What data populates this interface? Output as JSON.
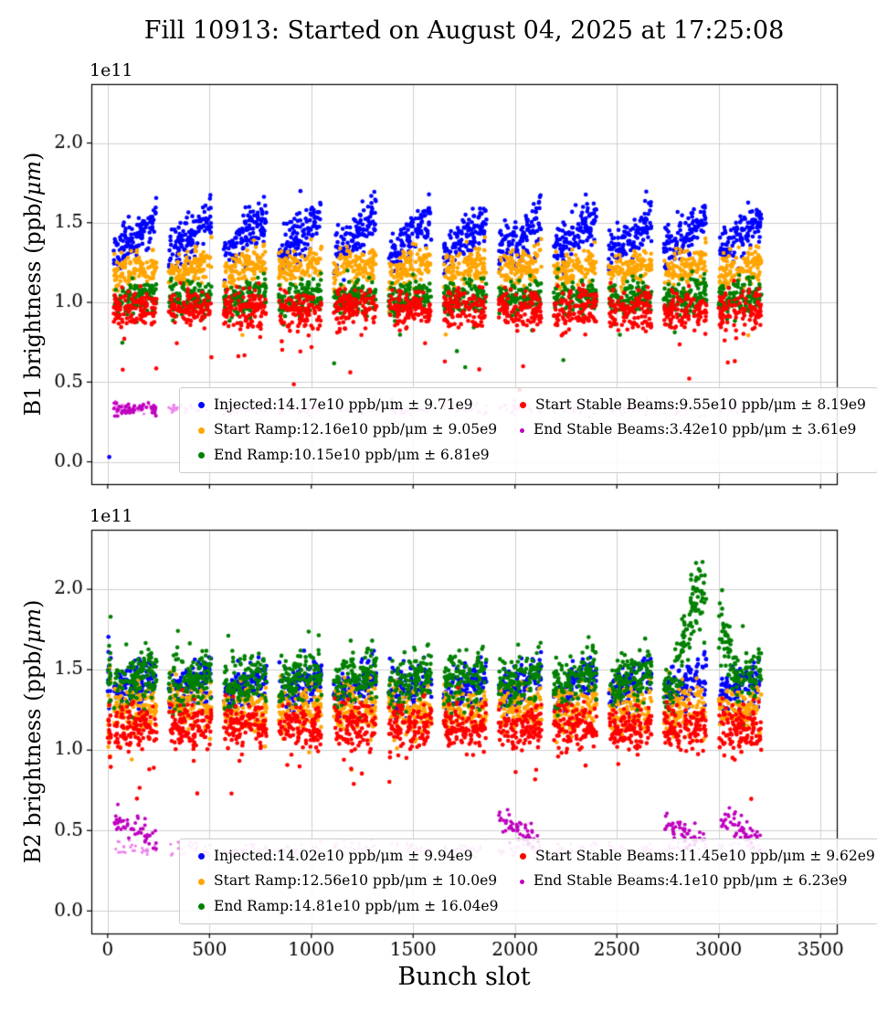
{
  "figure": {
    "title": "Fill 10913: Started on August 04, 2025 at 17:25:08",
    "xlabel": "Bunch slot",
    "background": "#ffffff"
  },
  "chart_data": [
    {
      "type": "scatter",
      "beam": "B1",
      "ylabel_text": "B1 brightness (ppb/μm)",
      "ylabel": {
        "pre": "B1 brightness (ppb/",
        "mu": "μm",
        "post": ")"
      },
      "xlabel": "Bunch slot",
      "offset_text": "1e11",
      "xlim": [
        -80,
        3580
      ],
      "ylim": [
        -0.14,
        2.37
      ],
      "x_ticks": [
        0,
        500,
        1000,
        1500,
        2000,
        2500,
        3000,
        3500
      ],
      "x_tick_labels": [
        "0",
        "500",
        "1000",
        "1500",
        "2000",
        "2500",
        "3000",
        "3500"
      ],
      "y_ticks": [
        0,
        0.5,
        1,
        1.5,
        2
      ],
      "y_tick_labels": [
        "0.0",
        "0.5",
        "1.0",
        "1.5",
        "2.0"
      ],
      "grid": true,
      "grid_color": "#d0d0d0",
      "legend_position": "lower center",
      "trains": {
        "start": 30,
        "step": 270,
        "len": 210,
        "count": 12
      },
      "seed": 20913,
      "stray": [
        {
          "x": 8,
          "y": 0.03,
          "color": "#0000ff",
          "size": 2.3
        }
      ],
      "series": [
        {
          "label": "Injected:14.17e10 ppb/μm ± 9.71e9",
          "name": "Injected",
          "mean_e10": 14.17,
          "std_e9": 9.71,
          "color": "#0000ff",
          "render": {
            "mean": 1.417,
            "sigma": 0.072,
            "trend": 0.22,
            "per_train": 118,
            "size": 2.3
          }
        },
        {
          "label": "Start Ramp:12.16e10 ppb/μm ± 9.05e9",
          "name": "Start Ramp",
          "mean_e10": 12.16,
          "std_e9": 9.05,
          "color": "#ffa500",
          "render": {
            "mean": 1.216,
            "sigma": 0.058,
            "trend": 0.08,
            "per_train": 112,
            "size": 2.3,
            "outlier_p": 0.006
          }
        },
        {
          "label": "End Ramp:10.15e10 ppb/μm ± 6.81e9",
          "name": "End Ramp",
          "mean_e10": 10.15,
          "std_e9": 6.81,
          "color": "#008000",
          "render": {
            "mean": 1.03,
            "sigma": 0.055,
            "trend": 0.05,
            "per_train": 112,
            "size": 2.3,
            "outlier_p": 0.012
          }
        },
        {
          "label": "Start Stable Beams:9.55e10 ppb/μm ± 8.19e9",
          "name": "Start Stable Beams",
          "mean_e10": 9.55,
          "std_e9": 8.19,
          "color": "#ff0000",
          "render": {
            "mean": 0.96,
            "sigma": 0.065,
            "trend": 0.0,
            "per_train": 114,
            "size": 2.3,
            "outlier_p": 0.02
          }
        },
        {
          "label": "End Stable Beams:3.42e10 ppb/μm ± 3.61e9",
          "name": "End Stable Beams",
          "mean_e10": 3.42,
          "std_e9": 3.61,
          "color": "#ee82ee",
          "legend_color": "#bf00bf",
          "render": {
            "mean": 0.335,
            "sigma": 0.02,
            "per_train": 26,
            "size": 1.6,
            "dark_trains": [
              0
            ],
            "dark_color": "#bf00bf",
            "dark_mean": 0.335,
            "dark_sigma": 0.02,
            "dark_n": 55,
            "dark_size": 2.0
          }
        }
      ]
    },
    {
      "type": "scatter",
      "beam": "B2",
      "ylabel_text": "B2 brightness (ppb/μm)",
      "ylabel": {
        "pre": "B2 brightness (ppb/",
        "mu": "μm",
        "post": ")"
      },
      "xlabel": "Bunch slot",
      "offset_text": "1e11",
      "xlim": [
        -80,
        3580
      ],
      "ylim": [
        -0.14,
        2.37
      ],
      "x_ticks": [
        0,
        500,
        1000,
        1500,
        2000,
        2500,
        3000,
        3500
      ],
      "x_tick_labels": [
        "0",
        "500",
        "1000",
        "1500",
        "2000",
        "2500",
        "3000",
        "3500"
      ],
      "y_ticks": [
        0,
        0.5,
        1,
        1.5,
        2
      ],
      "y_tick_labels": [
        "0.0",
        "0.5",
        "1.0",
        "1.5",
        "2.0"
      ],
      "grid": true,
      "grid_color": "#d0d0d0",
      "legend_position": "lower center",
      "trains": {
        "start": 30,
        "step": 270,
        "len": 210,
        "count": 12
      },
      "seed": 30913,
      "init": {
        "x_max": 16,
        "n": 14,
        "sigma_mult": 2.2
      },
      "series": [
        {
          "label": "Injected:14.02e10 ppb/μm ± 9.94e9",
          "name": "Injected",
          "mean_e10": 14.02,
          "std_e9": 9.94,
          "color": "#0000ff",
          "render": {
            "mean": 1.4,
            "sigma": 0.07,
            "trend": 0.12,
            "per_train": 112,
            "size": 2.3
          }
        },
        {
          "label": "Start Ramp:12.56e10 ppb/μm ± 10.0e9",
          "name": "Start Ramp",
          "mean_e10": 12.56,
          "std_e9": 10.0,
          "color": "#ffa500",
          "render": {
            "mean": 1.256,
            "sigma": 0.075,
            "trend": 0.0,
            "per_train": 110,
            "size": 2.3,
            "outlier_p": 0.01
          }
        },
        {
          "label": "End Ramp:14.81e10 ppb/μm ± 16.04e9",
          "name": "End Ramp",
          "mean_e10": 14.81,
          "std_e9": 16.04,
          "color": "#008000",
          "render": {
            "mean": 1.44,
            "sigma": 0.085,
            "trend": 0.1,
            "per_train": 120,
            "size": 2.3,
            "boost": {
              "x0": 2780,
              "x1": 3090,
              "dy": 0.5,
              "sigma": 0.12
            }
          }
        },
        {
          "label": "Start Stable Beams:11.45e10 ppb/μm ± 9.62e9",
          "name": "Start Stable Beams",
          "mean_e10": 11.45,
          "std_e9": 9.62,
          "color": "#ff0000",
          "render": {
            "mean": 1.145,
            "sigma": 0.07,
            "trend": 0.0,
            "per_train": 115,
            "size": 2.3,
            "outlier_p": 0.03
          }
        },
        {
          "label": "End Stable Beams:4.1e10 ppb/μm ± 6.23e9",
          "name": "End Stable Beams",
          "mean_e10": 4.1,
          "std_e9": 6.23,
          "color": "#ee82ee",
          "legend_color": "#bf00bf",
          "render": {
            "mean": 0.385,
            "sigma": 0.025,
            "per_train": 26,
            "size": 1.6,
            "dark_trains": [
              0,
              7,
              10,
              11
            ],
            "dark_color": "#bf00bf",
            "dark_mean": 0.5,
            "dark_sigma": 0.04,
            "dark_trend": -0.12,
            "dark_n": 50,
            "dark_size": 2.0
          }
        }
      ]
    }
  ]
}
